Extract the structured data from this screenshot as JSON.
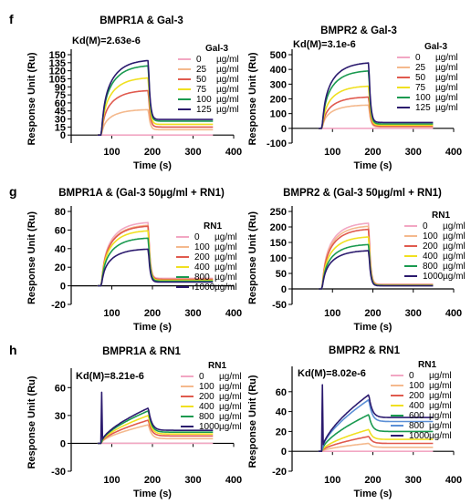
{
  "chart_data": [
    {
      "panel": "f",
      "type": "line",
      "title": "BMPR1A & Gal-3",
      "kd": "Kd(M)=2.63e-6",
      "xlabel": "Time (s)",
      "ylabel": "Response Unit (Ru)",
      "xlim": [
        0,
        400
      ],
      "ylim": [
        -15,
        150
      ],
      "xticks": [
        "100",
        "200",
        "300",
        "400"
      ],
      "yticks": [
        {
          "v": 0,
          "t": "0"
        },
        {
          "v": 15,
          "t": "15"
        },
        {
          "v": 30,
          "t": "30"
        },
        {
          "v": 45,
          "t": "45"
        },
        {
          "v": 60,
          "t": "60"
        },
        {
          "v": 75,
          "t": "75"
        },
        {
          "v": 90,
          "t": "90"
        },
        {
          "v": 105,
          "t": "105"
        },
        {
          "v": 120,
          "t": "120"
        },
        {
          "v": 135,
          "t": "135"
        },
        {
          "v": 150,
          "t": "150"
        }
      ],
      "legend_title": "Gal-3",
      "legend_position": "right",
      "curve_shape": "saturating",
      "assoc_start": 75,
      "assoc_end": 190,
      "series": [
        {
          "name": "0",
          "unit": "µg/ml",
          "color": "#f2a7c3",
          "plateau": 0,
          "final": 0,
          "spike": 0
        },
        {
          "name": "25",
          "unit": "µg/ml",
          "color": "#f4b98d",
          "plateau": 48,
          "final": 10,
          "spike": 0
        },
        {
          "name": "50",
          "unit": "µg/ml",
          "color": "#e05a4e",
          "plateau": 84,
          "final": 15,
          "spike": 0
        },
        {
          "name": "75",
          "unit": "µg/ml",
          "color": "#f0e020",
          "plateau": 108,
          "final": 20,
          "spike": 0
        },
        {
          "name": "100",
          "unit": "µg/ml",
          "color": "#1a9a50",
          "plateau": 131,
          "final": 26,
          "spike": 0
        },
        {
          "name": "125",
          "unit": "µg/ml",
          "color": "#2b1a6e",
          "plateau": 141,
          "final": 29,
          "spike": 0
        }
      ]
    },
    {
      "panel": "",
      "type": "line",
      "title": "BMPR2 & Gal-3",
      "kd": "Kd(M)=3.1e-6",
      "xlabel": "Time (s)",
      "ylabel": "Response Unit (Ru)",
      "xlim": [
        0,
        400
      ],
      "ylim": [
        -100,
        500
      ],
      "xticks": [
        "100",
        "200",
        "300",
        "400"
      ],
      "yticks": [
        {
          "v": -100,
          "t": "-100"
        },
        {
          "v": 0,
          "t": "0"
        },
        {
          "v": 100,
          "t": "100"
        },
        {
          "v": 200,
          "t": "200"
        },
        {
          "v": 300,
          "t": "300"
        },
        {
          "v": 400,
          "t": "400"
        },
        {
          "v": 500,
          "t": "500"
        }
      ],
      "legend_title": "Gal-3",
      "legend_position": "right",
      "curve_shape": "saturating",
      "assoc_start": 75,
      "assoc_end": 190,
      "series": [
        {
          "name": "0",
          "unit": "µg/ml",
          "color": "#f2a7c3",
          "plateau": 0,
          "final": 0,
          "spike": 0
        },
        {
          "name": "25",
          "unit": "µg/ml",
          "color": "#f4b98d",
          "plateau": 160,
          "final": 10,
          "spike": 0
        },
        {
          "name": "50",
          "unit": "µg/ml",
          "color": "#e05a4e",
          "plateau": 215,
          "final": 15,
          "spike": 0
        },
        {
          "name": "75",
          "unit": "µg/ml",
          "color": "#f0e020",
          "plateau": 290,
          "final": 22,
          "spike": 0
        },
        {
          "name": "100",
          "unit": "µg/ml",
          "color": "#1a9a50",
          "plateau": 395,
          "final": 30,
          "spike": 0
        },
        {
          "name": "125",
          "unit": "µg/ml",
          "color": "#2b1a6e",
          "plateau": 450,
          "final": 40,
          "spike": 0
        }
      ]
    },
    {
      "panel": "g",
      "type": "line",
      "title": "BMPR1A & (Gal-3 50µg/ml + RN1)",
      "kd": "",
      "xlabel": "Time (s)",
      "ylabel": "Response Unit (Ru)",
      "xlim": [
        0,
        400
      ],
      "ylim": [
        -20,
        80
      ],
      "xticks": [
        "100",
        "200",
        "300",
        "400"
      ],
      "yticks": [
        {
          "v": -20,
          "t": "-20"
        },
        {
          "v": 0,
          "t": "0"
        },
        {
          "v": 20,
          "t": "20"
        },
        {
          "v": 40,
          "t": "40"
        },
        {
          "v": 60,
          "t": "60"
        },
        {
          "v": 80,
          "t": "80"
        }
      ],
      "legend_title": "RN1",
      "legend_position": "right",
      "curve_shape": "saturating",
      "assoc_start": 75,
      "assoc_end": 190,
      "series": [
        {
          "name": "0",
          "unit": "µg/ml",
          "color": "#f2a7c3",
          "plateau": 69,
          "final": 8,
          "spike": 0
        },
        {
          "name": "100",
          "unit": "µg/ml",
          "color": "#f4b98d",
          "plateau": 66,
          "final": 7,
          "spike": 0
        },
        {
          "name": "200",
          "unit": "µg/ml",
          "color": "#e05a4e",
          "plateau": 65,
          "final": 7,
          "spike": 0
        },
        {
          "name": "400",
          "unit": "µg/ml",
          "color": "#f0e020",
          "plateau": 60,
          "final": 6,
          "spike": 0
        },
        {
          "name": "800",
          "unit": "µg/ml",
          "color": "#1a9a50",
          "plateau": 52,
          "final": 5,
          "spike": 0
        },
        {
          "name": "1000",
          "unit": "µg/ml",
          "color": "#2b1a6e",
          "plateau": 40,
          "final": 4,
          "spike": 0
        }
      ]
    },
    {
      "panel": "",
      "type": "line",
      "title": "BMPR2 & (Gal-3 50µg/ml + RN1)",
      "kd": "",
      "xlabel": "Time (s)",
      "ylabel": "Response Unit (Ru)",
      "xlim": [
        0,
        400
      ],
      "ylim": [
        -50,
        250
      ],
      "xticks": [
        "100",
        "200",
        "300",
        "400"
      ],
      "yticks": [
        {
          "v": -50,
          "t": "-50"
        },
        {
          "v": 0,
          "t": "0"
        },
        {
          "v": 50,
          "t": "50"
        },
        {
          "v": 100,
          "t": "100"
        },
        {
          "v": 150,
          "t": "150"
        },
        {
          "v": 200,
          "t": "200"
        },
        {
          "v": 250,
          "t": "250"
        }
      ],
      "legend_title": "RN1",
      "legend_position": "right",
      "curve_shape": "saturating",
      "assoc_start": 75,
      "assoc_end": 190,
      "series": [
        {
          "name": "0",
          "unit": "µg/ml",
          "color": "#f2a7c3",
          "plateau": 215,
          "final": 15,
          "spike": 0
        },
        {
          "name": "100",
          "unit": "µg/ml",
          "color": "#f4b98d",
          "plateau": 205,
          "final": 14,
          "spike": 0
        },
        {
          "name": "200",
          "unit": "µg/ml",
          "color": "#e05a4e",
          "plateau": 195,
          "final": 13,
          "spike": 0
        },
        {
          "name": "400",
          "unit": "µg/ml",
          "color": "#f0e020",
          "plateau": 170,
          "final": 12,
          "spike": 0
        },
        {
          "name": "800",
          "unit": "µg/ml",
          "color": "#1a9a50",
          "plateau": 145,
          "final": 11,
          "spike": 0
        },
        {
          "name": "1000",
          "unit": "µg/ml",
          "color": "#2b1a6e",
          "plateau": 125,
          "final": 10,
          "spike": 0
        }
      ]
    },
    {
      "panel": "h",
      "type": "line",
      "title": "BMPR1A & RN1",
      "kd": "Kd(M)=8.21e-6",
      "xlabel": "Time (s)",
      "ylabel": "Response Unit (Ru)",
      "xlim": [
        0,
        400
      ],
      "ylim": [
        -30,
        75
      ],
      "xticks": [
        "100",
        "200",
        "300",
        "400"
      ],
      "yticks": [
        {
          "v": -30,
          "t": "-30"
        },
        {
          "v": 0,
          "t": "0"
        },
        {
          "v": 30,
          "t": "30"
        },
        {
          "v": 60,
          "t": "60"
        }
      ],
      "legend_title": "RN1",
      "legend_position": "right",
      "curve_shape": "slow",
      "assoc_start": 75,
      "assoc_end": 190,
      "series": [
        {
          "name": "0",
          "unit": "µg/ml",
          "color": "#f2a7c3",
          "plateau": 0,
          "final": 0,
          "spike": 0
        },
        {
          "name": "100",
          "unit": "µg/ml",
          "color": "#f4b98d",
          "plateau": 20,
          "final": 5,
          "spike": 0
        },
        {
          "name": "200",
          "unit": "µg/ml",
          "color": "#e05a4e",
          "plateau": 25,
          "final": 8,
          "spike": 0
        },
        {
          "name": "400",
          "unit": "µg/ml",
          "color": "#f0e020",
          "plateau": 30,
          "final": 10,
          "spike": 0
        },
        {
          "name": "800",
          "unit": "µg/ml",
          "color": "#1a9a50",
          "plateau": 35,
          "final": 12,
          "spike": 0
        },
        {
          "name": "1000",
          "unit": "µg/ml",
          "color": "#2b1a6e",
          "plateau": 38,
          "final": 14,
          "spike": 55
        }
      ]
    },
    {
      "panel": "",
      "type": "line",
      "title": "BMPR2 & RN1",
      "kd": "Kd(M)=8.02e-6",
      "xlabel": "Time (s)",
      "ylabel": "Response Unit (Ru)",
      "xlim": [
        0,
        400
      ],
      "ylim": [
        -20,
        80
      ],
      "xticks": [
        "100",
        "200",
        "300",
        "400"
      ],
      "yticks": [
        {
          "v": -20,
          "t": "-20"
        },
        {
          "v": 0,
          "t": "0"
        },
        {
          "v": 20,
          "t": "20"
        },
        {
          "v": 40,
          "t": "40"
        },
        {
          "v": 60,
          "t": "60"
        }
      ],
      "legend_title": "RN1",
      "legend_position": "right",
      "curve_shape": "slow",
      "assoc_start": 75,
      "assoc_end": 190,
      "series": [
        {
          "name": "0",
          "unit": "µg/ml",
          "color": "#f2a7c3",
          "plateau": 0,
          "final": 0,
          "spike": 0
        },
        {
          "name": "100",
          "unit": "µg/ml",
          "color": "#f4b98d",
          "plateau": 8,
          "final": 4,
          "spike": 0
        },
        {
          "name": "200",
          "unit": "µg/ml",
          "color": "#e05a4e",
          "plateau": 15,
          "final": 8,
          "spike": 0
        },
        {
          "name": "400",
          "unit": "µg/ml",
          "color": "#f0e020",
          "plateau": 22,
          "final": 12,
          "spike": 0
        },
        {
          "name": "600",
          "unit": "µg/ml",
          "color": "#1a9a50",
          "plateau": 37,
          "final": 20,
          "spike": 0
        },
        {
          "name": "800",
          "unit": "µg/ml",
          "color": "#5b8fd6",
          "plateau": 52,
          "final": 30,
          "spike": 0
        },
        {
          "name": "1000",
          "unit": "µg/ml",
          "color": "#2b1a6e",
          "plateau": 57,
          "final": 34,
          "spike": 67
        }
      ]
    }
  ]
}
